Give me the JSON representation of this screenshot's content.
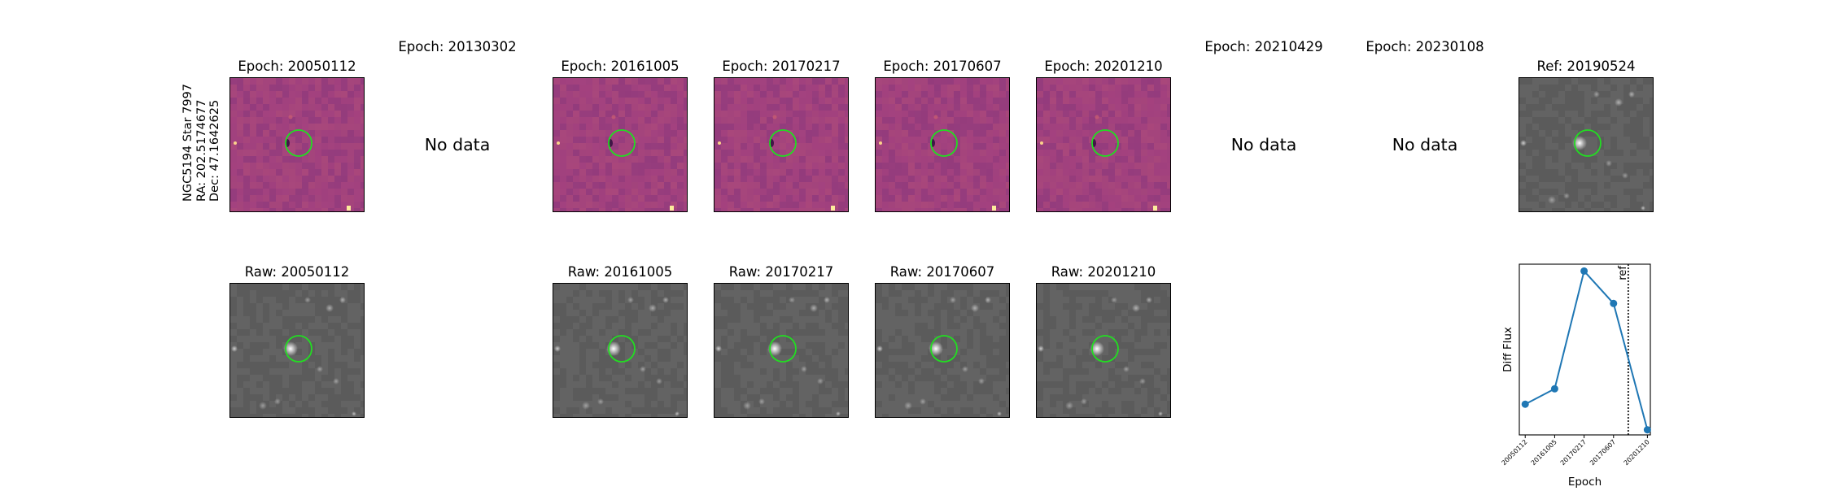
{
  "star": {
    "name": "NGC5194 Star 7997",
    "ra": "RA: 202.5174677",
    "dec": "Dec: 47.1642625"
  },
  "no_data_text": "No data",
  "diff_panels": [
    {
      "title": "Epoch: 20050112",
      "has_data": true
    },
    {
      "title": "Epoch: 20130302",
      "has_data": false
    },
    {
      "title": "Epoch: 20161005",
      "has_data": true
    },
    {
      "title": "Epoch: 20170217",
      "has_data": true
    },
    {
      "title": "Epoch: 20170607",
      "has_data": true
    },
    {
      "title": "Epoch: 20201210",
      "has_data": true
    },
    {
      "title": "Epoch: 20210429",
      "has_data": false
    },
    {
      "title": "Epoch: 20230108",
      "has_data": false
    },
    {
      "title": "Ref: 20190524",
      "has_data": true,
      "kind": "reference"
    }
  ],
  "raw_panels": [
    {
      "title": "Raw: 20050112",
      "column": 0
    },
    {
      "title": "Raw: 20161005",
      "column": 2
    },
    {
      "title": "Raw: 20170217",
      "column": 3
    },
    {
      "title": "Raw: 20170607",
      "column": 4
    },
    {
      "title": "Raw: 20201210",
      "column": 5
    }
  ],
  "colors": {
    "diff_colormap": "magma",
    "diff_base": "#9c3f7e",
    "raw_base": "#5f5f5f",
    "aperture": "#22dd22",
    "series": "#1f77b4"
  },
  "chart_data": {
    "type": "line",
    "xlabel": "Epoch",
    "ylabel": "Diff Flux",
    "categories": [
      "20050112",
      "20161005",
      "20170217",
      "20170607",
      "20201210"
    ],
    "series": [
      {
        "values": [
          0.18,
          0.27,
          0.96,
          0.77,
          0.03
        ],
        "color": "#1f77b4",
        "marker": "circle"
      }
    ],
    "x_numeric": [
      0,
      1,
      2,
      3,
      4.15
    ],
    "xlim": [
      -0.2,
      4.25
    ],
    "ylim": [
      0,
      1
    ],
    "y_ticks_shown": false,
    "grid": false,
    "reference_line": {
      "x": 3.5,
      "label": "ref",
      "style": "dotted"
    }
  }
}
